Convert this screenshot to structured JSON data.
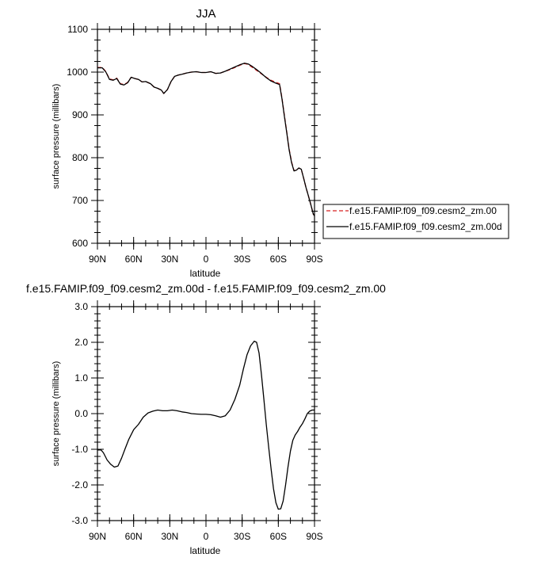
{
  "chart_data": [
    {
      "type": "line",
      "title": "JJA",
      "xlabel": "latitude",
      "ylabel": "surface pressure (millibars)",
      "xlim": [
        90,
        -90
      ],
      "ylim": [
        600,
        1100
      ],
      "xticks": [
        {
          "value": 90,
          "label": "90N"
        },
        {
          "value": 60,
          "label": "60N"
        },
        {
          "value": 30,
          "label": "30N"
        },
        {
          "value": 0,
          "label": "0"
        },
        {
          "value": -30,
          "label": "30S"
        },
        {
          "value": -60,
          "label": "60S"
        },
        {
          "value": -90,
          "label": "90S"
        }
      ],
      "yticks": [
        {
          "value": 1100,
          "label": "1100"
        },
        {
          "value": 1000,
          "label": "1000"
        },
        {
          "value": 900,
          "label": "900"
        },
        {
          "value": 800,
          "label": "800"
        },
        {
          "value": 700,
          "label": "700"
        },
        {
          "value": 600,
          "label": "600"
        }
      ],
      "legend": "right",
      "x": [
        90,
        86,
        83,
        80,
        77,
        74,
        71,
        68,
        65,
        62,
        59,
        56,
        53,
        50,
        46,
        43,
        40,
        37,
        35,
        32,
        29,
        26,
        23,
        20,
        16,
        12,
        8,
        4,
        0,
        -4,
        -8,
        -12,
        -16,
        -20,
        -24,
        -28,
        -32,
        -35,
        -38,
        -42,
        -46,
        -50,
        -54,
        -58,
        -61,
        -63,
        -65,
        -67,
        -69,
        -71,
        -73,
        -75,
        -77,
        -79,
        -81,
        -83,
        -85,
        -87,
        -89,
        -90
      ],
      "series": [
        {
          "name": "f.e15.FAMIP.f09_f09.cesm2_zm.00",
          "color": "#d62020",
          "style": "dashed",
          "values": [
            1011,
            1011,
            1001,
            984,
            982,
            986,
            973,
            971,
            976,
            988,
            985,
            983,
            977,
            978,
            973,
            965,
            962,
            958,
            950,
            959,
            978,
            990,
            993,
            995,
            998,
            1000,
            1001,
            999,
            999,
            1001,
            997,
            998,
            1002,
            1006,
            1011,
            1016,
            1020,
            1018,
            1012,
            1004,
            996,
            988,
            981,
            976,
            973,
            940,
            900,
            860,
            820,
            790,
            770,
            771,
            776,
            773,
            752,
            730,
            710,
            690,
            668,
            664
          ]
        },
        {
          "name": "f.e15.FAMIP.f09_f09.cesm2_zm.00d",
          "color": "#000000",
          "style": "solid",
          "values": [
            1010,
            1010,
            1000,
            983,
            981,
            985,
            972,
            970,
            975,
            988,
            985,
            983,
            977,
            978,
            973,
            965,
            962,
            958,
            950,
            959,
            978,
            990,
            993,
            995,
            998,
            1000,
            1001,
            999,
            999,
            1001,
            997,
            998,
            1002,
            1007,
            1012,
            1017,
            1021,
            1019,
            1014,
            1006,
            997,
            987,
            979,
            974,
            971,
            938,
            898,
            858,
            818,
            788,
            769,
            771,
            776,
            773,
            752,
            730,
            710,
            690,
            668,
            664
          ]
        }
      ]
    },
    {
      "type": "line",
      "title": "f.e15.FAMIP.f09_f09.cesm2_zm.00d - f.e15.FAMIP.f09_f09.cesm2_zm.00",
      "xlabel": "latitude",
      "ylabel": "surface pressure (millibars)",
      "xlim": [
        90,
        -90
      ],
      "ylim": [
        -3.0,
        3.0
      ],
      "xticks": [
        {
          "value": 90,
          "label": "90N"
        },
        {
          "value": 60,
          "label": "60N"
        },
        {
          "value": 30,
          "label": "30N"
        },
        {
          "value": 0,
          "label": "0"
        },
        {
          "value": -30,
          "label": "30S"
        },
        {
          "value": -60,
          "label": "60S"
        },
        {
          "value": -90,
          "label": "90S"
        }
      ],
      "yticks": [
        {
          "value": 3.0,
          "label": "3.0"
        },
        {
          "value": 2.0,
          "label": "2.0"
        },
        {
          "value": 1.0,
          "label": "1.0"
        },
        {
          "value": 0.0,
          "label": "0.0"
        },
        {
          "value": -1.0,
          "label": "-1.0"
        },
        {
          "value": -2.0,
          "label": "-2.0"
        },
        {
          "value": -3.0,
          "label": "-3.0"
        }
      ],
      "x": [
        90,
        87,
        85,
        82,
        79,
        76,
        73,
        70,
        67,
        64,
        60,
        56,
        52,
        48,
        44,
        40,
        36,
        32,
        28,
        24,
        20,
        16,
        12,
        8,
        4,
        0,
        -4,
        -8,
        -12,
        -16,
        -20,
        -24,
        -28,
        -31,
        -34,
        -37,
        -40,
        -42,
        -44,
        -46,
        -48,
        -50,
        -52,
        -54,
        -56,
        -58,
        -60,
        -62,
        -64,
        -66,
        -68,
        -70,
        -72,
        -74,
        -76,
        -78,
        -80,
        -82,
        -84,
        -86,
        -88,
        -90
      ],
      "series": [
        {
          "name": "f.e15.FAMIP.f09_f09.cesm2_zm.00d - f.e15.FAMIP.f09_f09.cesm2_zm.00",
          "color": "#000000",
          "style": "solid",
          "values": [
            -1.02,
            -1.02,
            -1.1,
            -1.3,
            -1.42,
            -1.5,
            -1.47,
            -1.25,
            -0.98,
            -0.72,
            -0.45,
            -0.3,
            -0.1,
            0.02,
            0.07,
            0.1,
            0.08,
            0.08,
            0.1,
            0.08,
            0.05,
            0.03,
            0.0,
            -0.01,
            -0.02,
            -0.02,
            -0.03,
            -0.06,
            -0.1,
            -0.06,
            0.1,
            0.4,
            0.8,
            1.25,
            1.65,
            1.9,
            2.03,
            2.0,
            1.7,
            1.1,
            0.4,
            -0.3,
            -0.95,
            -1.55,
            -2.1,
            -2.5,
            -2.68,
            -2.67,
            -2.45,
            -2.0,
            -1.5,
            -1.05,
            -0.75,
            -0.6,
            -0.5,
            -0.38,
            -0.28,
            -0.15,
            0.0,
            0.07,
            0.1,
            0.1
          ]
        }
      ]
    }
  ]
}
